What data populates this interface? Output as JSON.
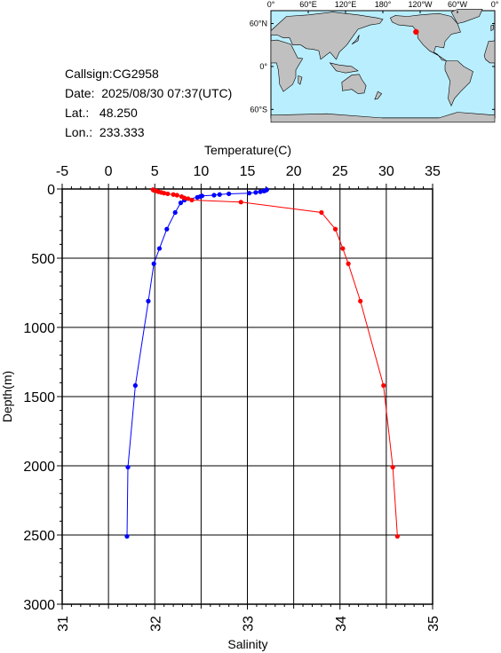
{
  "station": {
    "callsign": "Callsign:CG2958",
    "date": "Date:  2025/08/30 07:37(UTC)",
    "lat": "Lat.:   48.250",
    "lon": "Lon.:  233.333"
  },
  "map": {
    "lon_labels": [
      "0°",
      "60°E",
      "120°E",
      "180°",
      "120°W",
      "60°W",
      "0°"
    ],
    "lat_labels": [
      "60°N",
      "0°",
      "60°S"
    ],
    "ocean_color": "#b9eeff",
    "land_color": "#c0c0c0",
    "station_marker_color": "#ff0000"
  },
  "chart_data": {
    "type": "line",
    "top_axis_label": "Temperature(C)",
    "bottom_axis_label": "Salinity",
    "ylabel": "Depth(m)",
    "temperature_range": [
      -5,
      35
    ],
    "temperature_ticks": [
      -5,
      0,
      5,
      10,
      15,
      20,
      25,
      30,
      35
    ],
    "salinity_range": [
      31,
      35
    ],
    "salinity_ticks": [
      31,
      32,
      33,
      34,
      35
    ],
    "depth_range": [
      0,
      3000
    ],
    "depth_ticks": [
      0,
      500,
      1000,
      1500,
      2000,
      2500,
      3000
    ],
    "grid": true,
    "series": [
      {
        "quantity": "temperature",
        "color": "#0000ff",
        "points": [
          {
            "depth": 5,
            "value": 17.1
          },
          {
            "depth": 10,
            "value": 17.0
          },
          {
            "depth": 15,
            "value": 16.8
          },
          {
            "depth": 20,
            "value": 16.4
          },
          {
            "depth": 25,
            "value": 15.9
          },
          {
            "depth": 30,
            "value": 15.2
          },
          {
            "depth": 35,
            "value": 13.0
          },
          {
            "depth": 40,
            "value": 12.0
          },
          {
            "depth": 45,
            "value": 11.4
          },
          {
            "depth": 50,
            "value": 10.1
          },
          {
            "depth": 55,
            "value": 9.9
          },
          {
            "depth": 60,
            "value": 9.6
          },
          {
            "depth": 80,
            "value": 8.2
          },
          {
            "depth": 100,
            "value": 7.8
          },
          {
            "depth": 170,
            "value": 7.2
          },
          {
            "depth": 290,
            "value": 6.3
          },
          {
            "depth": 430,
            "value": 5.5
          },
          {
            "depth": 540,
            "value": 4.9
          },
          {
            "depth": 810,
            "value": 4.3
          },
          {
            "depth": 1420,
            "value": 2.9
          },
          {
            "depth": 2010,
            "value": 2.1
          },
          {
            "depth": 2510,
            "value": 2.0
          }
        ]
      },
      {
        "quantity": "salinity",
        "color": "#ff0000",
        "points": [
          {
            "depth": 5,
            "value": 31.98
          },
          {
            "depth": 10,
            "value": 31.99
          },
          {
            "depth": 15,
            "value": 32.02
          },
          {
            "depth": 20,
            "value": 32.04
          },
          {
            "depth": 25,
            "value": 32.07
          },
          {
            "depth": 30,
            "value": 32.1
          },
          {
            "depth": 35,
            "value": 32.14
          },
          {
            "depth": 40,
            "value": 32.2
          },
          {
            "depth": 45,
            "value": 32.24
          },
          {
            "depth": 55,
            "value": 32.29
          },
          {
            "depth": 65,
            "value": 32.32
          },
          {
            "depth": 70,
            "value": 32.36
          },
          {
            "depth": 80,
            "value": 32.4
          },
          {
            "depth": 95,
            "value": 32.93
          },
          {
            "depth": 170,
            "value": 33.8
          },
          {
            "depth": 290,
            "value": 33.95
          },
          {
            "depth": 430,
            "value": 34.03
          },
          {
            "depth": 540,
            "value": 34.09
          },
          {
            "depth": 810,
            "value": 34.22
          },
          {
            "depth": 1420,
            "value": 34.47
          },
          {
            "depth": 2010,
            "value": 34.57
          },
          {
            "depth": 2510,
            "value": 34.62
          }
        ]
      }
    ]
  }
}
